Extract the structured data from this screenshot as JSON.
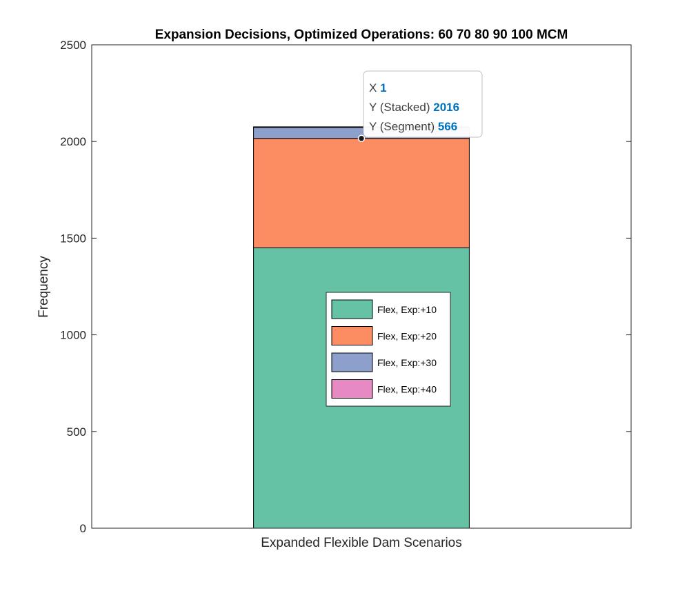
{
  "chart_data": {
    "type": "bar",
    "stacked": true,
    "title": "Expansion Decisions, Optimized Operations: 60   70   80   90  100 MCM",
    "xlabel": "",
    "ylabel": "Frequency",
    "categories": [
      "Expanded Flexible Dam Scenarios"
    ],
    "ylim": [
      0,
      2500
    ],
    "yticks": [
      0,
      500,
      1000,
      1500,
      2000,
      2500
    ],
    "grid": false,
    "legend_position": "inside-center",
    "series": [
      {
        "name": "Flex, Exp:+10",
        "color": "#66c2a5",
        "values": [
          1450
        ]
      },
      {
        "name": "Flex, Exp:+20",
        "color": "#fc8d62",
        "values": [
          566
        ]
      },
      {
        "name": "Flex, Exp:+30",
        "color": "#8da0cb",
        "values": [
          57
        ]
      },
      {
        "name": "Flex, Exp:+40",
        "color": "#e78ac3",
        "values": [
          3
        ]
      }
    ],
    "datatip": {
      "x_key": "X",
      "x_val": "1",
      "stacked_key": "Y (Stacked)",
      "stacked_val": "2016",
      "segment_key": "Y (Segment)",
      "segment_val": "566",
      "series_index": 1,
      "category_index": 0
    }
  }
}
